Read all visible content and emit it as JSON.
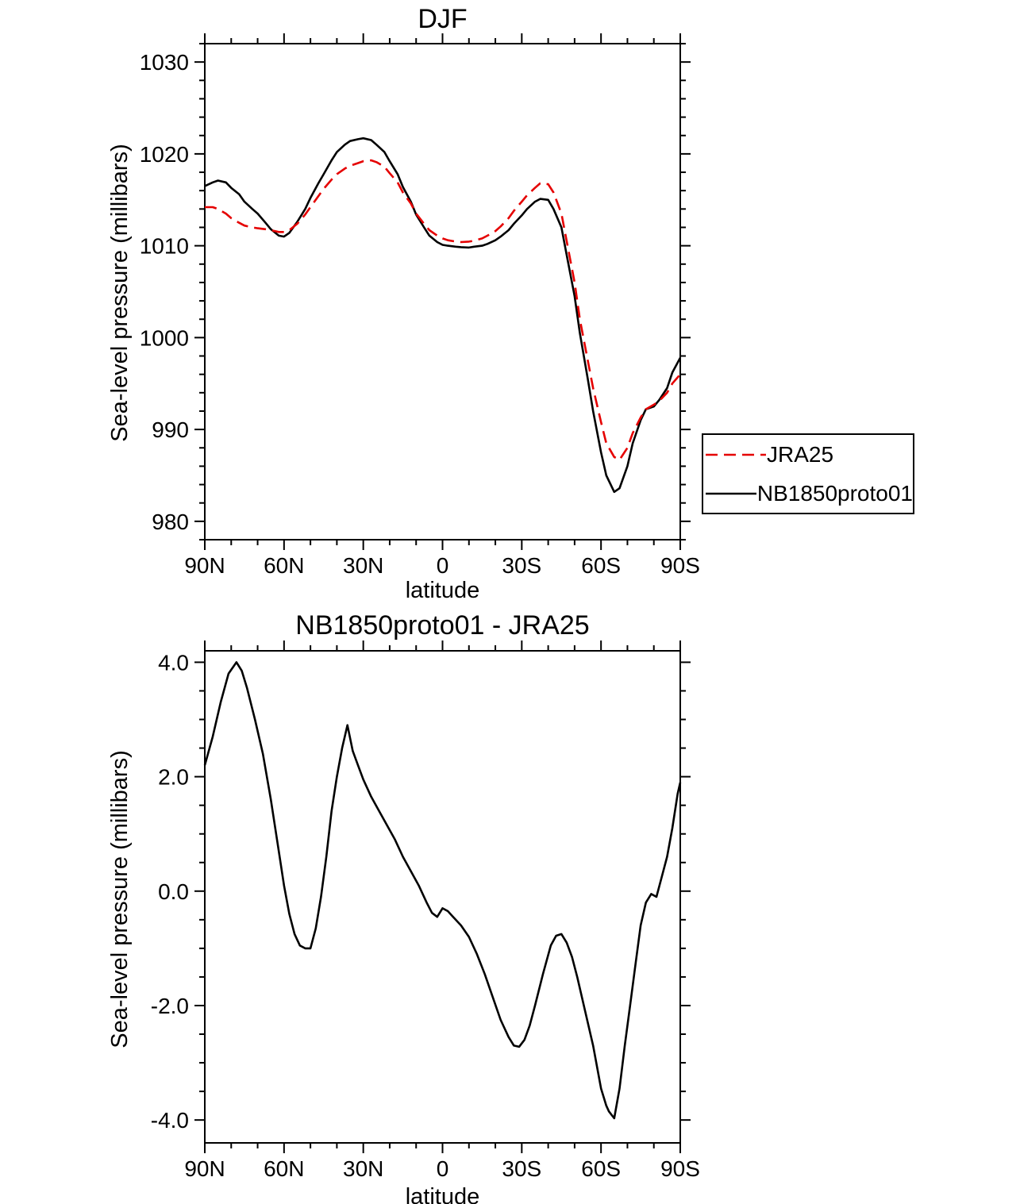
{
  "page": {
    "background": "#ffffff"
  },
  "chart_data": [
    {
      "type": "line",
      "title": "DJF",
      "xlabel": "latitude",
      "ylabel": "Sea-level pressure (millibars)",
      "xlim": [
        90,
        -90
      ],
      "ylim": [
        978,
        1032
      ],
      "grid": false,
      "legend_position": "outside-right",
      "xticks": {
        "major": [
          90,
          60,
          30,
          0,
          -30,
          -60,
          -90
        ],
        "labels": [
          "90N",
          "60N",
          "30N",
          "0",
          "30S",
          "60S",
          "90S"
        ],
        "minor_step": 10
      },
      "yticks": {
        "major": [
          980,
          990,
          1000,
          1010,
          1020,
          1030
        ],
        "labels": [
          "980",
          "990",
          "1000",
          "1010",
          "1020",
          "1030"
        ],
        "minor_step": 2
      },
      "series": [
        {
          "name": "JRA25",
          "color": "#e50000",
          "dashed": true,
          "x": [
            90,
            87,
            85,
            82,
            80,
            77,
            75,
            72,
            70,
            67,
            65,
            62,
            60,
            58,
            55,
            52,
            50,
            47,
            45,
            42,
            40,
            37,
            35,
            32,
            30,
            27,
            25,
            22,
            20,
            17,
            15,
            12,
            10,
            7,
            5,
            2,
            0,
            -2,
            -5,
            -7,
            -10,
            -12,
            -15,
            -17,
            -20,
            -22,
            -25,
            -27,
            -30,
            -32,
            -35,
            -37,
            -40,
            -42,
            -45,
            -47,
            -50,
            -52,
            -55,
            -57,
            -60,
            -62,
            -65,
            -67,
            -70,
            -72,
            -75,
            -77,
            -80,
            -82,
            -85,
            -87,
            -90
          ],
          "y": [
            1014.2,
            1014.2,
            1014.0,
            1013.5,
            1013.0,
            1012.5,
            1012.2,
            1012.0,
            1011.9,
            1011.8,
            1011.7,
            1011.5,
            1011.5,
            1011.7,
            1012.4,
            1013.4,
            1014.2,
            1015.4,
            1016.2,
            1017.2,
            1017.8,
            1018.4,
            1018.7,
            1019.0,
            1019.2,
            1019.3,
            1019.1,
            1018.6,
            1017.9,
            1016.9,
            1015.8,
            1014.6,
            1013.5,
            1012.4,
            1011.7,
            1011.1,
            1010.8,
            1010.6,
            1010.45,
            1010.4,
            1010.45,
            1010.55,
            1010.8,
            1011.1,
            1011.6,
            1012.1,
            1013.0,
            1013.8,
            1014.8,
            1015.5,
            1016.3,
            1016.8,
            1016.7,
            1015.8,
            1013.5,
            1010.5,
            1006.0,
            1002.0,
            997.5,
            994.5,
            990.8,
            988.5,
            987.0,
            986.7,
            988.0,
            989.6,
            991.3,
            992.2,
            992.7,
            993.1,
            994.0,
            995.0,
            996.0
          ]
        },
        {
          "name": "NB1850proto01",
          "color": "#000000",
          "dashed": false,
          "x": [
            90,
            87,
            85,
            82,
            80,
            77,
            75,
            72,
            70,
            67,
            65,
            62,
            60,
            58,
            55,
            52,
            50,
            47,
            45,
            42,
            40,
            37,
            35,
            32,
            30,
            27,
            25,
            22,
            20,
            17,
            15,
            12,
            10,
            7,
            5,
            2,
            0,
            -2,
            -5,
            -7,
            -10,
            -12,
            -15,
            -17,
            -20,
            -22,
            -25,
            -27,
            -30,
            -32,
            -35,
            -37,
            -40,
            -42,
            -45,
            -47,
            -50,
            -52,
            -55,
            -57,
            -60,
            -62,
            -65,
            -67,
            -70,
            -72,
            -75,
            -77,
            -80,
            -82,
            -85,
            -87,
            -90
          ],
          "y": [
            1016.5,
            1016.9,
            1017.1,
            1016.9,
            1016.3,
            1015.6,
            1014.8,
            1014.0,
            1013.5,
            1012.5,
            1011.8,
            1011.1,
            1011.0,
            1011.4,
            1012.6,
            1014.0,
            1015.2,
            1016.8,
            1017.8,
            1019.3,
            1020.2,
            1021.0,
            1021.4,
            1021.6,
            1021.7,
            1021.5,
            1021.0,
            1020.2,
            1019.2,
            1017.8,
            1016.4,
            1014.8,
            1013.4,
            1012.0,
            1011.1,
            1010.4,
            1010.1,
            1010.0,
            1009.9,
            1009.85,
            1009.8,
            1009.9,
            1010.0,
            1010.2,
            1010.6,
            1011.0,
            1011.7,
            1012.4,
            1013.3,
            1014.0,
            1014.8,
            1015.1,
            1015.0,
            1014.0,
            1012.0,
            1009.0,
            1004.5,
            1000.5,
            995.5,
            992.0,
            987.5,
            985.0,
            983.2,
            983.6,
            986.0,
            988.5,
            991.0,
            992.2,
            992.5,
            993.2,
            994.5,
            996.2,
            997.8
          ]
        }
      ]
    },
    {
      "type": "line",
      "title": "NB1850proto01 - JRA25",
      "xlabel": "latitude",
      "ylabel": "Sea-level pressure (millibars)",
      "xlim": [
        90,
        -90
      ],
      "ylim": [
        -4.4,
        4.2
      ],
      "grid": false,
      "legend_position": "none",
      "xticks": {
        "major": [
          90,
          60,
          30,
          0,
          -30,
          -60,
          -90
        ],
        "labels": [
          "90N",
          "60N",
          "30N",
          "0",
          "30S",
          "60S",
          "90S"
        ],
        "minor_step": 10
      },
      "yticks": {
        "major": [
          -4,
          -2,
          0,
          2,
          4
        ],
        "labels": [
          "-4.0",
          "-2.0",
          "0.0",
          "2.0",
          "4.0"
        ],
        "minor_step": 0.5
      },
      "series": [
        {
          "name": "NB1850proto01 - JRA25",
          "color": "#000000",
          "dashed": false,
          "x": [
            90,
            87,
            84,
            81,
            78,
            76,
            74,
            71,
            68,
            65,
            62,
            60,
            58,
            56,
            54,
            52,
            50,
            48,
            46,
            44,
            42,
            40,
            38,
            36,
            34,
            32,
            30,
            27,
            24,
            21,
            18,
            15,
            12,
            9,
            6,
            4,
            2,
            0,
            -2,
            -4,
            -7,
            -10,
            -13,
            -16,
            -19,
            -22,
            -25,
            -27,
            -29,
            -31,
            -33,
            -35,
            -38,
            -41,
            -43,
            -45,
            -47,
            -49,
            -51,
            -54,
            -57,
            -60,
            -62,
            -63,
            -65,
            -67,
            -69,
            -71,
            -73,
            -75,
            -77,
            -79,
            -81,
            -83,
            -85,
            -87,
            -89,
            -90
          ],
          "y": [
            2.2,
            2.7,
            3.3,
            3.8,
            4.0,
            3.85,
            3.55,
            3.0,
            2.4,
            1.6,
            0.7,
            0.1,
            -0.4,
            -0.75,
            -0.95,
            -1.0,
            -1.0,
            -0.65,
            -0.1,
            0.6,
            1.4,
            2.0,
            2.5,
            2.9,
            2.45,
            2.2,
            1.95,
            1.65,
            1.4,
            1.15,
            0.9,
            0.6,
            0.35,
            0.1,
            -0.2,
            -0.38,
            -0.45,
            -0.3,
            -0.35,
            -0.45,
            -0.6,
            -0.8,
            -1.1,
            -1.45,
            -1.85,
            -2.25,
            -2.55,
            -2.7,
            -2.72,
            -2.6,
            -2.35,
            -2.0,
            -1.45,
            -0.95,
            -0.78,
            -0.75,
            -0.9,
            -1.15,
            -1.5,
            -2.1,
            -2.7,
            -3.45,
            -3.75,
            -3.85,
            -3.97,
            -3.45,
            -2.7,
            -2.0,
            -1.3,
            -0.6,
            -0.2,
            -0.05,
            -0.1,
            0.25,
            0.6,
            1.1,
            1.7,
            1.9
          ]
        }
      ]
    }
  ]
}
